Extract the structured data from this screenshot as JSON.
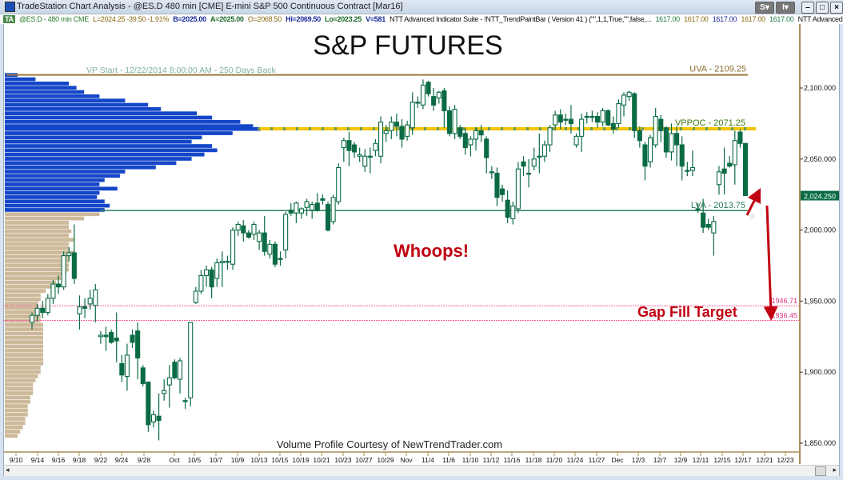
{
  "window": {
    "title": "TradeStation Chart Analysis - @ES.D 480 min [CME] E-mini S&P 500 Continuous Contract [Mar16]",
    "buttons": {
      "s": "S",
      "i": "I"
    }
  },
  "infobar": {
    "ta": "TA",
    "symbol": "@ES.D - 480 min  CME",
    "last": "L=2024.25  -39.50  -1.91%",
    "bid": "B=2025.00",
    "ask": "A=2025.00",
    "open": "O=2068.50",
    "high": "Hi=2069.50",
    "low": "Lo=2023.25",
    "volume": "V=581",
    "indicator": "NTT Advanced Indicator Suite - !NTT_TrendPaintBar ( Version 41 ) (\"\",1,1,True,\"\",false,...",
    "values": [
      "1617.00",
      "1617.00",
      "1617.00",
      "1617.00",
      "1617.00"
    ],
    "indicator2": "NTT Advanced Ind ..."
  },
  "chart_data": {
    "type": "candlestick",
    "title": "S&P FUTURES",
    "footer": "Volume Profile Courtesy of NewTrendTrader.com",
    "vp_start": "VP Start - 12/22/2014 8:00:00 AM - 250 Days Back",
    "ylim": [
      1840,
      2118
    ],
    "y_ticks": [
      2100,
      2050,
      2000,
      1950,
      1900,
      1850
    ],
    "y_tick_labels": [
      "2,100.000",
      "2,050.000",
      "2,000.000",
      "1,950.000",
      "1,900.000",
      "1,850.000"
    ],
    "x_tick_labels": [
      "9/10",
      "9/14",
      "9/16",
      "9/18",
      "9/22",
      "9/24",
      "9/28",
      "Oct",
      "10/5",
      "10/7",
      "10/9",
      "10/13",
      "10/15",
      "10/19",
      "10/21",
      "10/23",
      "10/27",
      "10/29",
      "Nov",
      "11/4",
      "11/6",
      "11/10",
      "11/12",
      "11/16",
      "11/18",
      "11/20",
      "11/24",
      "11/27",
      "Dec",
      "12/3",
      "12/7",
      "12/9",
      "12/11",
      "12/15",
      "12/17",
      "12/21",
      "12/23"
    ],
    "last_price": 2024.25,
    "last_price_label": "2,024.250",
    "levels": {
      "uva": {
        "value": 2109.25,
        "label": "UVA - 2109.25",
        "color": "#9c7a3c"
      },
      "vppoc": {
        "value": 2071.25,
        "label": "VPPOC - 2071.25",
        "color": "#f5c400"
      },
      "lva": {
        "value": 2013.75,
        "label": "LVA - 2013.75",
        "color": "#3a8a6a"
      },
      "gap_top": {
        "value": 1946.71,
        "label": "1946.71",
        "color": "#ff5fa0"
      },
      "gap_bottom": {
        "value": 1936.45,
        "label": "1936.45",
        "color": "#ff5fa0"
      }
    },
    "annotations": {
      "whoops": "Whoops!",
      "gap_fill": "Gap Fill Target"
    },
    "colors": {
      "candle": "#0a6b44",
      "value_area": "#1446c8",
      "outside_value_area": "#cdb99a",
      "annotation": "#c00010",
      "axis": "#a88f5e"
    },
    "candles_ohlc": [
      [
        1935,
        1942,
        1930,
        1940
      ],
      [
        1940,
        1948,
        1936,
        1945
      ],
      [
        1945,
        1950,
        1938,
        1942
      ],
      [
        1942,
        1955,
        1940,
        1952
      ],
      [
        1952,
        1965,
        1948,
        1962
      ],
      [
        1962,
        1968,
        1955,
        1960
      ],
      [
        1960,
        1985,
        1958,
        1982
      ],
      [
        1982,
        1988,
        1978,
        1984
      ],
      [
        1984,
        2004,
        1962,
        1966
      ],
      [
        1941,
        1954,
        1930,
        1946
      ],
      [
        1946,
        1952,
        1938,
        1945
      ],
      [
        1948,
        1958,
        1944,
        1952
      ],
      [
        1947,
        1962,
        1935,
        1958
      ],
      [
        1925,
        1929,
        1920,
        1926
      ],
      [
        1926,
        1932,
        1915,
        1925
      ],
      [
        1928,
        1930,
        1920,
        1921
      ],
      [
        1924,
        1942,
        1907,
        1922
      ],
      [
        1906,
        1912,
        1893,
        1898
      ],
      [
        1897,
        1920,
        1887,
        1912
      ],
      [
        1926,
        1930,
        1917,
        1921
      ],
      [
        1929,
        1935,
        1895,
        1910
      ],
      [
        1903,
        1905,
        1890,
        1892
      ],
      [
        1893,
        1893,
        1858,
        1863
      ],
      [
        1865,
        1873,
        1861,
        1870
      ],
      [
        1869,
        1885,
        1852,
        1866
      ],
      [
        1885,
        1895,
        1880,
        1887
      ],
      [
        1891,
        1905,
        1875,
        1896
      ],
      [
        1907,
        1909,
        1895,
        1896
      ],
      [
        1895,
        1910,
        1885,
        1908
      ],
      [
        1880,
        1882,
        1874,
        1880
      ],
      [
        1882,
        1935,
        1876,
        1935
      ],
      [
        1949,
        1960,
        1948,
        1957
      ],
      [
        1957,
        1972,
        1955,
        1968
      ],
      [
        1968,
        1975,
        1960,
        1972
      ],
      [
        1972,
        1974,
        1952,
        1960
      ],
      [
        1966,
        1980,
        1960,
        1977
      ],
      [
        1977,
        1985,
        1960,
        1978
      ],
      [
        1978,
        1982,
        1972,
        1978
      ],
      [
        1976,
        2002,
        1972,
        2000
      ],
      [
        2000,
        2006,
        1996,
        2004
      ],
      [
        2003,
        2007,
        1992,
        1998
      ],
      [
        1998,
        2000,
        1994,
        1995
      ],
      [
        1997,
        2006,
        1993,
        2004
      ],
      [
        1992,
        2000,
        1986,
        1998
      ],
      [
        1998,
        2010,
        1982,
        1985
      ],
      [
        1983,
        1993,
        1980,
        1990
      ],
      [
        1990,
        1992,
        1974,
        1976
      ],
      [
        1980,
        1985,
        1975,
        1980
      ],
      [
        1986,
        2013,
        1980,
        2011
      ],
      [
        2014,
        2019,
        2010,
        2012
      ],
      [
        2012,
        2020,
        2005,
        2019
      ],
      [
        2012,
        2016,
        2008,
        2015
      ],
      [
        2016,
        2022,
        2010,
        2020
      ],
      [
        2014,
        2020,
        2008,
        2018
      ],
      [
        2019,
        2026,
        2013,
        2014
      ],
      [
        2022,
        2025,
        2018,
        2021
      ],
      [
        2018,
        2020,
        1999,
        2000
      ],
      [
        2006,
        2025,
        2004,
        2023
      ],
      [
        2020,
        2047,
        2018,
        2044
      ],
      [
        2058,
        2065,
        2048,
        2063
      ],
      [
        2063,
        2069,
        2045,
        2056
      ],
      [
        2060,
        2062,
        2051,
        2055
      ],
      [
        2052,
        2058,
        2048,
        2053
      ],
      [
        2045,
        2057,
        2041,
        2052
      ],
      [
        2052,
        2058,
        2040,
        2052
      ],
      [
        2056,
        2064,
        2052,
        2061
      ],
      [
        2052,
        2080,
        2047,
        2076
      ],
      [
        2068,
        2074,
        2062,
        2070
      ],
      [
        2070,
        2080,
        2064,
        2076
      ],
      [
        2076,
        2082,
        2066,
        2073
      ],
      [
        2073,
        2078,
        2058,
        2064
      ],
      [
        2066,
        2077,
        2063,
        2074
      ],
      [
        2072,
        2097,
        2067,
        2090
      ],
      [
        2090,
        2094,
        2086,
        2090
      ],
      [
        2088,
        2106,
        2085,
        2102
      ],
      [
        2104,
        2105,
        2094,
        2096
      ],
      [
        2094,
        2100,
        2084,
        2088
      ],
      [
        2093,
        2098,
        2089,
        2097
      ],
      [
        2098,
        2100,
        2072,
        2084
      ],
      [
        2084,
        2087,
        2066,
        2068
      ],
      [
        2068,
        2088,
        2064,
        2085
      ],
      [
        2072,
        2074,
        2064,
        2066
      ],
      [
        2068,
        2072,
        2053,
        2058
      ],
      [
        2060,
        2066,
        2052,
        2064
      ],
      [
        2064,
        2072,
        2056,
        2070
      ],
      [
        2070,
        2074,
        2062,
        2067
      ],
      [
        2064,
        2066,
        2040,
        2051
      ],
      [
        2041,
        2045,
        2036,
        2041
      ],
      [
        2040,
        2044,
        2017,
        2023
      ],
      [
        2029,
        2032,
        2020,
        2025
      ],
      [
        2021,
        2028,
        2005,
        2009
      ],
      [
        2008,
        2020,
        2004,
        2017
      ],
      [
        2015,
        2048,
        2012,
        2043
      ],
      [
        2048,
        2052,
        2038,
        2045
      ],
      [
        2040,
        2050,
        2030,
        2040
      ],
      [
        2045,
        2058,
        2042,
        2050
      ],
      [
        2052,
        2068,
        2040,
        2052
      ],
      [
        2052,
        2063,
        2048,
        2060
      ],
      [
        2060,
        2074,
        2055,
        2072
      ],
      [
        2074,
        2084,
        2070,
        2081
      ],
      [
        2081,
        2085,
        2071,
        2076
      ],
      [
        2078,
        2082,
        2074,
        2078
      ],
      [
        2078,
        2088,
        2068,
        2075
      ],
      [
        2060,
        2068,
        2058,
        2066
      ],
      [
        2066,
        2082,
        2055,
        2078
      ],
      [
        2080,
        2083,
        2075,
        2080
      ],
      [
        2080,
        2084,
        2076,
        2080
      ],
      [
        2080,
        2083,
        2072,
        2076
      ],
      [
        2076,
        2086,
        2073,
        2084
      ],
      [
        2084,
        2085,
        2073,
        2074
      ],
      [
        2075,
        2080,
        2068,
        2071
      ],
      [
        2075,
        2092,
        2072,
        2089
      ],
      [
        2088,
        2097,
        2080,
        2095
      ],
      [
        2094,
        2098,
        2091,
        2097
      ],
      [
        2096,
        2097,
        2065,
        2070
      ],
      [
        2070,
        2073,
        2058,
        2063
      ],
      [
        2060,
        2062,
        2035,
        2045
      ],
      [
        2048,
        2067,
        2044,
        2065
      ],
      [
        2060,
        2086,
        2058,
        2080
      ],
      [
        2078,
        2081,
        2062,
        2070
      ],
      [
        2072,
        2073,
        2051,
        2055
      ],
      [
        2055,
        2075,
        2049,
        2068
      ],
      [
        2068,
        2073,
        2045,
        2060
      ],
      [
        2060,
        2066,
        2035,
        2045
      ],
      [
        2042,
        2048,
        2038,
        2042
      ],
      [
        2042,
        2056,
        2038,
        2044
      ],
      [
        2015,
        2019,
        2012,
        2015
      ],
      [
        2012,
        2022,
        1998,
        2002
      ],
      [
        2004,
        2008,
        2000,
        2002
      ],
      [
        1998,
        2010,
        1982,
        2006
      ],
      [
        2032,
        2045,
        2025,
        2041
      ],
      [
        2043,
        2058,
        2025,
        2040
      ],
      [
        2047,
        2052,
        2044,
        2045
      ],
      [
        2046,
        2070,
        2032,
        2063
      ],
      [
        2069,
        2071,
        2058,
        2061
      ],
      [
        2061,
        2061,
        2024,
        2024.25
      ]
    ],
    "volume_profile_pct": [
      [
        2109,
        5
      ],
      [
        2106,
        12
      ],
      [
        2103,
        25
      ],
      [
        2100,
        28
      ],
      [
        2097,
        31
      ],
      [
        2094,
        37
      ],
      [
        2091,
        47
      ],
      [
        2088,
        56
      ],
      [
        2085,
        61
      ],
      [
        2082,
        75
      ],
      [
        2079,
        81
      ],
      [
        2076,
        92
      ],
      [
        2073,
        97
      ],
      [
        2071,
        100
      ],
      [
        2068,
        89
      ],
      [
        2065,
        77
      ],
      [
        2062,
        73
      ],
      [
        2059,
        81
      ],
      [
        2056,
        83
      ],
      [
        2053,
        78
      ],
      [
        2050,
        73
      ],
      [
        2047,
        67
      ],
      [
        2044,
        59
      ],
      [
        2041,
        47
      ],
      [
        2038,
        45
      ],
      [
        2035,
        39
      ],
      [
        2032,
        37
      ],
      [
        2029,
        44
      ],
      [
        2026,
        37
      ],
      [
        2023,
        36
      ],
      [
        2020,
        39
      ],
      [
        2017,
        41
      ],
      [
        2014,
        39
      ],
      [
        2011,
        37
      ],
      [
        2008,
        31
      ],
      [
        2005,
        25
      ],
      [
        2002,
        25
      ],
      [
        1999,
        26
      ],
      [
        1996,
        25
      ],
      [
        1993,
        27
      ],
      [
        1990,
        25
      ],
      [
        1987,
        25
      ],
      [
        1984,
        27
      ],
      [
        1981,
        25
      ],
      [
        1978,
        25
      ],
      [
        1975,
        25
      ],
      [
        1972,
        25
      ],
      [
        1969,
        24
      ],
      [
        1966,
        22
      ],
      [
        1963,
        20
      ],
      [
        1960,
        19
      ],
      [
        1957,
        16
      ],
      [
        1954,
        14
      ],
      [
        1951,
        14
      ],
      [
        1948,
        13
      ],
      [
        1945,
        13
      ],
      [
        1942,
        13
      ],
      [
        1939,
        14
      ],
      [
        1936,
        14
      ],
      [
        1933,
        15
      ],
      [
        1930,
        15
      ],
      [
        1927,
        15
      ],
      [
        1924,
        15
      ],
      [
        1921,
        15
      ],
      [
        1918,
        15
      ],
      [
        1915,
        15
      ],
      [
        1912,
        15
      ],
      [
        1909,
        15
      ],
      [
        1906,
        15
      ],
      [
        1903,
        14
      ],
      [
        1900,
        14
      ],
      [
        1897,
        13
      ],
      [
        1894,
        12
      ],
      [
        1891,
        11
      ],
      [
        1888,
        11
      ],
      [
        1885,
        11
      ],
      [
        1882,
        10
      ],
      [
        1879,
        10
      ],
      [
        1876,
        9
      ],
      [
        1873,
        9
      ],
      [
        1870,
        9
      ],
      [
        1867,
        8
      ],
      [
        1864,
        8
      ],
      [
        1861,
        7
      ],
      [
        1858,
        6
      ],
      [
        1855,
        5
      ]
    ]
  }
}
